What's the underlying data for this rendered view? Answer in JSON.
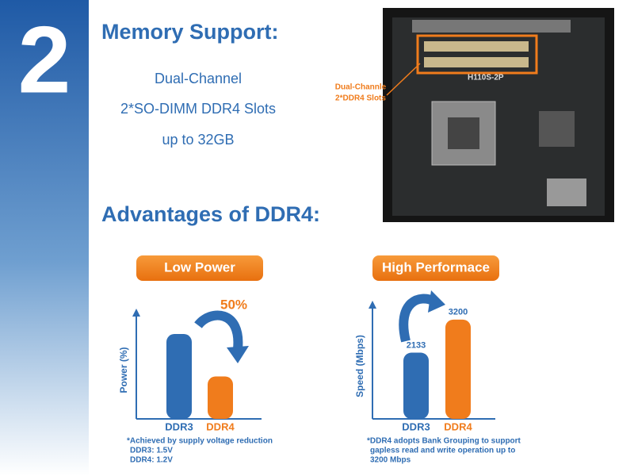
{
  "header": {
    "number": "2",
    "title": "Memory Support:",
    "lines": [
      "Dual-Channel",
      "2*SO-DIMM DDR4 Slots",
      "up to 32GB"
    ],
    "subtitle": "Advantages of DDR4:"
  },
  "photo": {
    "callout": [
      "Dual-Channle",
      "2*DDR4 Slots"
    ]
  },
  "chart_data": [
    {
      "type": "bar",
      "title": "Low Power",
      "y_label": "Power (%)",
      "categories": [
        "DDR3",
        "DDR4"
      ],
      "values": [
        100,
        50
      ],
      "colors": [
        "#2f6db3",
        "#f07c1c"
      ],
      "ylim": [
        0,
        115
      ],
      "annotation": "50%",
      "notes": [
        "*Achieved by supply voltage reduction",
        "DDR3: 1.5V",
        "DDR4: 1.2V"
      ]
    },
    {
      "type": "bar",
      "title": "High Performace",
      "y_label": "Speed (Mbps)",
      "categories": [
        "DDR3",
        "DDR4"
      ],
      "values": [
        2133,
        3200
      ],
      "colors": [
        "#2f6db3",
        "#f07c1c"
      ],
      "ylim": [
        0,
        3400
      ],
      "notes": [
        "*DDR4 adopts Bank Grouping to support",
        "gapless read and write operation up to",
        "3200 Mbps"
      ]
    }
  ]
}
